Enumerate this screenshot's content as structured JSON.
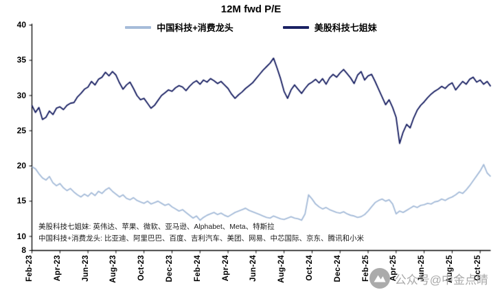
{
  "title": "12M fwd P/E",
  "footnotes": [
    "美股科技七姐妹: 英伟达、苹果、微软、亚马逊、Alphabet、Meta、特斯拉",
    "中国科技+消费龙头: 比亚迪、阿里巴巴、百度、吉利汽车、美团、网易、中芯国际、京东、腾讯和小米"
  ],
  "watermark": "公众号@中金点睛",
  "colors": {
    "china_line": "#a6bcd9",
    "us_line": "#1a2163",
    "axis": "#000000",
    "watermark_grey": "#a8a8a8"
  },
  "chart_data": {
    "type": "line",
    "title": "12M fwd P/E",
    "xlabel": "",
    "ylabel": "",
    "ylim": [
      8,
      40
    ],
    "y_ticks": [
      8,
      10,
      15,
      20,
      25,
      30,
      35,
      40
    ],
    "grid": false,
    "legend_position": "top",
    "x_tick_every": 2,
    "points_per_month": 4,
    "months": [
      "Feb-23",
      "Mar-23",
      "Apr-23",
      "May-23",
      "Jun-23",
      "Jul-23",
      "Aug-23",
      "Sep-23",
      "Oct-23",
      "Nov-23",
      "Dec-23",
      "Jan-24",
      "Feb-24",
      "Mar-24",
      "Apr-24",
      "May-24",
      "Jun-24",
      "Jul-24",
      "Aug-24",
      "Sep-24",
      "Oct-24",
      "Nov-24",
      "Dec-24",
      "Jan-25",
      "Feb-25",
      "Mar-25",
      "Apr-25",
      "May-25",
      "Jun-25",
      "Jul-25",
      "Aug-25",
      "Sep-25",
      "Oct-25"
    ],
    "series": [
      {
        "name": "中国科技+消费龙头",
        "color": "#a6bcd9",
        "values": [
          19.9,
          19.6,
          18.9,
          18.3,
          18.0,
          18.5,
          17.6,
          17.2,
          17.5,
          16.9,
          16.5,
          16.8,
          16.3,
          15.9,
          15.6,
          16.0,
          15.7,
          16.2,
          15.8,
          16.4,
          16.1,
          16.6,
          16.9,
          16.4,
          16.0,
          15.6,
          15.9,
          15.4,
          15.2,
          15.5,
          15.1,
          14.9,
          14.7,
          15.0,
          14.6,
          14.8,
          15.0,
          14.7,
          14.4,
          14.6,
          14.2,
          13.9,
          13.6,
          13.8,
          13.4,
          13.0,
          12.6,
          12.9,
          12.3,
          12.7,
          13.0,
          13.2,
          13.4,
          13.1,
          13.3,
          13.0,
          12.8,
          13.1,
          13.4,
          13.6,
          13.8,
          14.0,
          13.7,
          13.5,
          13.3,
          13.1,
          12.9,
          12.7,
          12.6,
          12.9,
          12.7,
          12.5,
          12.4,
          12.6,
          12.8,
          12.6,
          12.5,
          12.3,
          13.2,
          15.9,
          15.3,
          14.6,
          14.2,
          13.9,
          14.1,
          13.8,
          13.6,
          13.4,
          13.3,
          13.5,
          13.2,
          13.0,
          12.9,
          12.7,
          12.8,
          13.1,
          13.6,
          14.2,
          14.8,
          15.1,
          15.3,
          15.0,
          15.2,
          14.6,
          13.2,
          13.6,
          13.4,
          13.7,
          14.0,
          14.3,
          14.1,
          14.4,
          14.5,
          14.7,
          14.6,
          14.9,
          15.0,
          15.3,
          15.1,
          15.4,
          15.6,
          15.9,
          16.3,
          16.1,
          16.6,
          17.2,
          17.9,
          18.6,
          19.3,
          20.2,
          19.0,
          18.5
        ]
      },
      {
        "name": "美股科技七姐妹",
        "color": "#1a2163",
        "values": [
          28.6,
          27.6,
          28.3,
          26.6,
          26.9,
          27.8,
          27.3,
          28.2,
          28.4,
          28.0,
          28.6,
          28.9,
          29.0,
          29.8,
          30.3,
          30.9,
          31.2,
          32.0,
          31.5,
          32.3,
          32.6,
          33.3,
          32.8,
          33.4,
          32.9,
          31.8,
          30.9,
          31.5,
          31.9,
          31.0,
          30.0,
          29.4,
          29.6,
          28.9,
          28.2,
          28.6,
          29.3,
          30.0,
          30.4,
          30.8,
          30.6,
          31.1,
          31.4,
          31.2,
          30.7,
          31.3,
          31.8,
          32.1,
          31.6,
          32.2,
          31.9,
          32.4,
          32.1,
          31.7,
          32.0,
          31.5,
          31.0,
          30.2,
          29.6,
          30.1,
          30.5,
          31.0,
          31.4,
          31.8,
          32.4,
          33.0,
          33.6,
          34.1,
          34.6,
          35.3,
          33.9,
          32.4,
          30.6,
          29.6,
          30.8,
          31.5,
          30.9,
          30.3,
          31.0,
          31.6,
          31.9,
          32.3,
          31.8,
          32.4,
          31.6,
          32.5,
          33.0,
          32.6,
          33.2,
          33.7,
          33.1,
          32.5,
          31.7,
          32.9,
          33.4,
          32.2,
          32.8,
          33.0,
          32.0,
          30.9,
          29.8,
          28.7,
          29.4,
          28.3,
          26.9,
          23.2,
          24.8,
          25.9,
          25.4,
          26.8,
          27.9,
          28.6,
          29.1,
          29.7,
          30.2,
          30.6,
          30.9,
          31.3,
          31.0,
          31.5,
          31.8,
          30.8,
          31.4,
          32.0,
          31.6,
          32.3,
          32.6,
          31.9,
          32.2,
          31.6,
          32.0,
          31.3
        ]
      }
    ]
  }
}
